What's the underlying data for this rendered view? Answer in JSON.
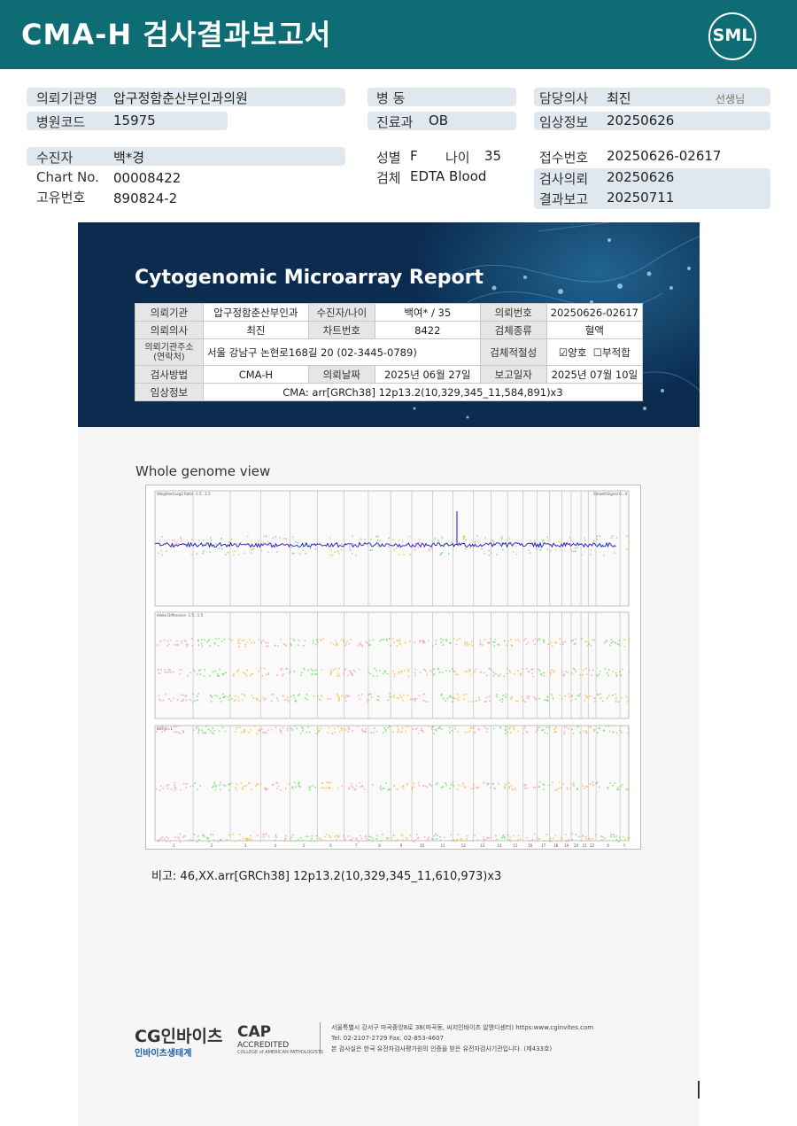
{
  "header": {
    "title": "CMA-H 검사결과보고서",
    "logo_text": "SML"
  },
  "info": {
    "requester_label": "의뢰기관명",
    "requester_value": "압구정함춘산부인과의원",
    "hospital_code_label": "병원코드",
    "hospital_code_value": "15975",
    "ward_label": "병  동",
    "department_label": "진료과",
    "department_value": "OB",
    "doctor_label": "담당의사",
    "doctor_value": "최진",
    "doctor_suffix": "선생님",
    "clinical_label": "임상정보",
    "clinical_value": "20250626",
    "patient_label": "수진자",
    "patient_value": "백*경",
    "chart_label": "Chart No.",
    "chart_value": "00008422",
    "id_label": "고유번호",
    "id_value": "890824-2",
    "sex_label": "성별",
    "sex_value": "F",
    "age_label": "나이",
    "age_value": "35",
    "specimen_label": "검체",
    "specimen_value": "EDTA Blood",
    "receipt_label": "접수번호",
    "receipt_value": "20250626-02617",
    "test_request_label": "검사의뢰",
    "test_request_value": "20250626",
    "result_label": "결과보고",
    "result_value": "20250711"
  },
  "report": {
    "title": "Cytogenomic Microarray Report",
    "rows": {
      "r1": {
        "c1": "의뢰기관",
        "c2": "압구정함춘산부인과",
        "c3": "수진자/나이",
        "c4": "백여* / 35",
        "c5": "의뢰번호",
        "c6": "20250626-02617"
      },
      "r2": {
        "c1": "의뢰의사",
        "c2": "최진",
        "c3": "차트번호",
        "c4": "8422",
        "c5": "검체종류",
        "c6": "혈액"
      },
      "r3": {
        "c1a": "의뢰기관주소",
        "c1b": "(연락처)",
        "c2": "서울 강남구 논현로168길 20 (02-3445-0789)",
        "c5": "검체적절성",
        "ok": "양호",
        "bad": "부적합"
      },
      "r4": {
        "c1": "검사방법",
        "c2": "CMA-H",
        "c3": "의뢰날짜",
        "c4": "2025년 06월 27일",
        "c5": "보고일자",
        "c6": "2025년 07월 10일"
      },
      "r5": {
        "c1": "임상정보",
        "c2": "CMA: arr[GRCh38] 12p13.2(10,329,345_11,584,891)x3"
      }
    }
  },
  "plot": {
    "heading": "Whole genome view",
    "panel1_title": "Weighted Log2 Ratio -1.5...1.5",
    "panel1_right": "SmoothSignal 0...4",
    "panel2_title": "Allele Difference -1.5...1.5",
    "panel3_title": "BAF 0...1",
    "chromosomes": [
      "1",
      "2",
      "3",
      "4",
      "5",
      "6",
      "7",
      "8",
      "9",
      "10",
      "11",
      "12",
      "13",
      "14",
      "15",
      "16",
      "17",
      "18",
      "19",
      "20",
      "21",
      "22",
      "X",
      "Y"
    ],
    "colors": {
      "pink": "#f4a6b0",
      "green": "#7ddc6e",
      "orange": "#f7c04a",
      "line": "#1a1acc"
    }
  },
  "remark": "비고: 46,XX.arr[GRCh38] 12p13.2(10,329,345_11,610,973)x3",
  "footer": {
    "company": "CG인바이츠",
    "company_sub": "인바이츠생태계",
    "cap_title": "CAP",
    "cap_sub": "ACCREDITED",
    "cap_small": "COLLEGE of AMERICAN PATHOLOGISTS",
    "address": "서울특별시 강서구 마곡중앙8로 38(마곡동, 씨지인바이츠 알앤디센터)  https:www.cginvites.com",
    "tel": "Tel. 02-2107-2729   Fax. 02-853-4607",
    "notice": "본 검사실은 한국 유전자검사평가원의 인증을 받은 유전자검사기관입니다. (제433호)"
  }
}
